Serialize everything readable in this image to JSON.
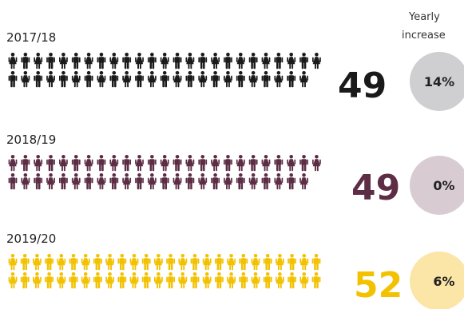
{
  "header": {
    "yearly_line1": "Yearly",
    "yearly_line2": "increase"
  },
  "chart_data": {
    "type": "pictogram",
    "title": "",
    "groups": [
      {
        "year": "2017/18",
        "count": 49,
        "number": "49",
        "increase": "14%",
        "color": "#1a1a1a",
        "circle_color": "#cfcfd1"
      },
      {
        "year": "2018/19",
        "count": 49,
        "number": "49",
        "increase": "0%",
        "color": "#5c2d45",
        "circle_color": "#d8ccd2"
      },
      {
        "year": "2019/20",
        "count": 52,
        "number": "52",
        "increase": "6%",
        "color": "#f2c100",
        "circle_color": "#fbe6a8"
      }
    ]
  }
}
